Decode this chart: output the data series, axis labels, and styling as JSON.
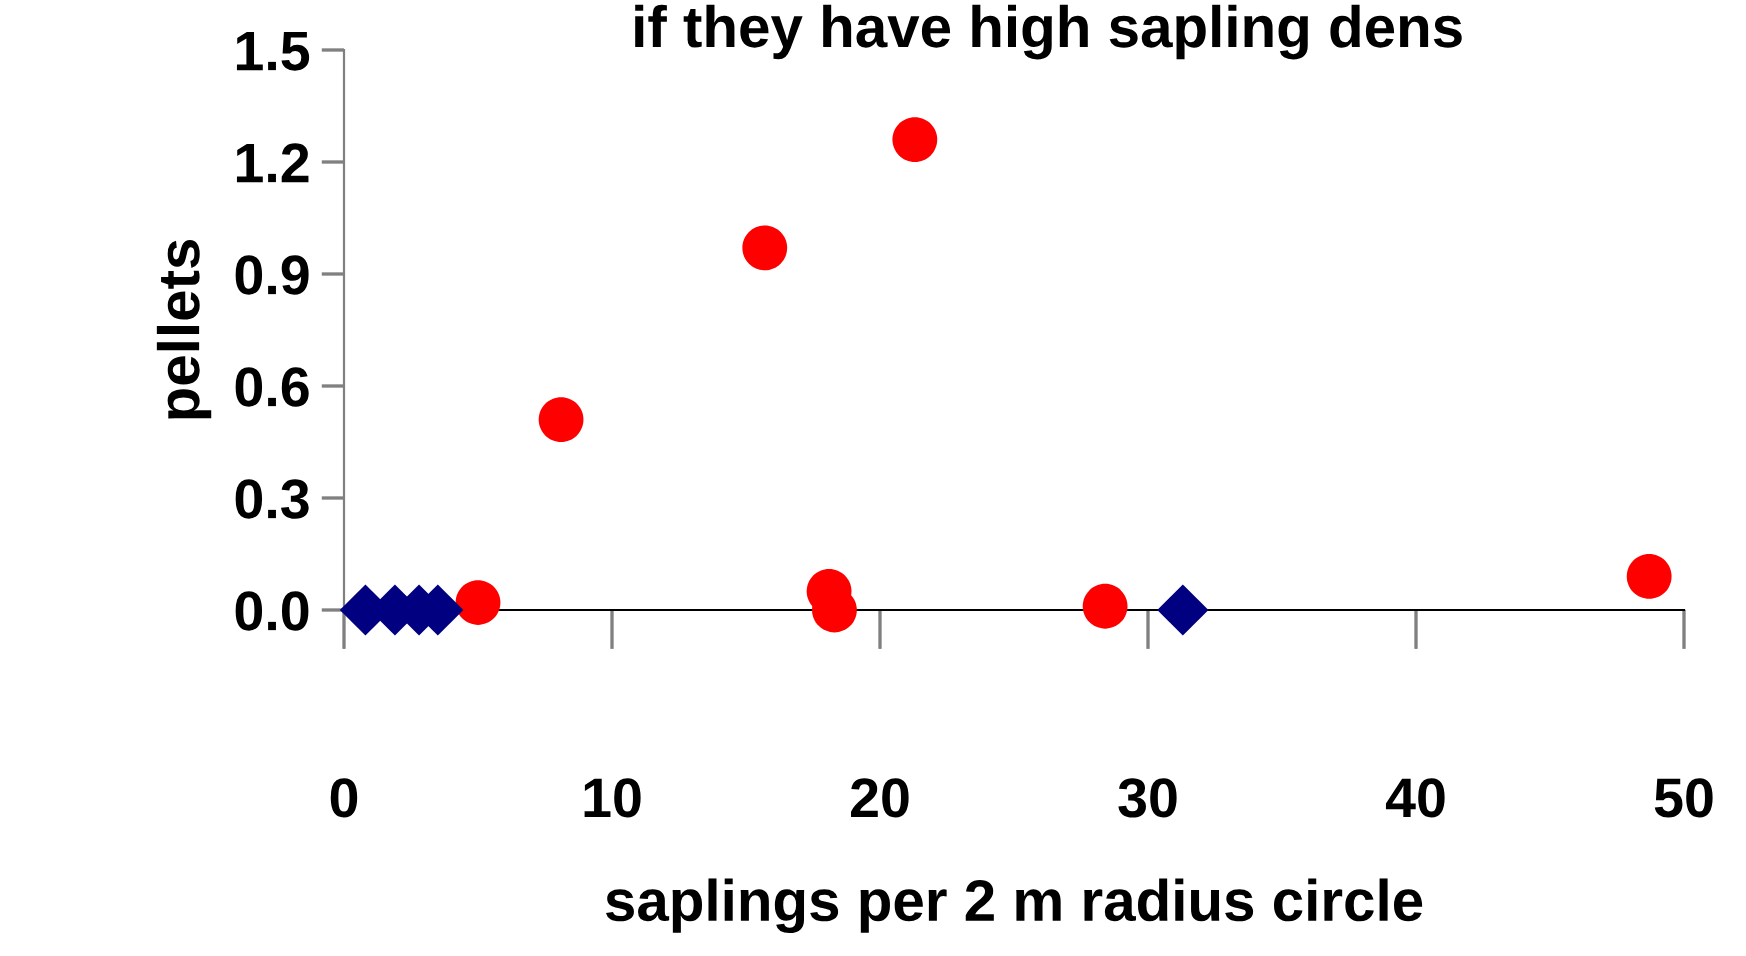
{
  "chart_data": {
    "type": "scatter",
    "title": "if they have high sapling dens",
    "xlabel": "saplings per 2 m radius circle",
    "ylabel": "pellets",
    "xlim": [
      0,
      50
    ],
    "ylim": [
      0,
      1.5
    ],
    "xticks": [
      0,
      10,
      20,
      30,
      40,
      50
    ],
    "yticks": [
      {
        "value": 0,
        "label": "0.0"
      },
      {
        "value": 0.3,
        "label": "0.3"
      },
      {
        "value": 0.6,
        "label": "0.6"
      },
      {
        "value": 0.9,
        "label": "0.9"
      },
      {
        "value": 1.2,
        "label": "1.2"
      },
      {
        "value": 1.5,
        "label": "1.5"
      }
    ],
    "grid": false,
    "legend": false,
    "series": [
      {
        "color": "#ff0000",
        "marker": "circle",
        "x": [
          5.0,
          8.1,
          15.7,
          21.3,
          18.1,
          18.3,
          28.4,
          48.7
        ],
        "values": [
          0.02,
          0.51,
          0.97,
          1.26,
          0.05,
          0.0,
          0.01,
          0.09
        ]
      },
      {
        "color": "#000080",
        "marker": "diamond",
        "x": [
          0.8,
          1.9,
          2.8,
          3.5,
          31.3
        ],
        "values": [
          0,
          0,
          0,
          0,
          0
        ]
      }
    ]
  }
}
